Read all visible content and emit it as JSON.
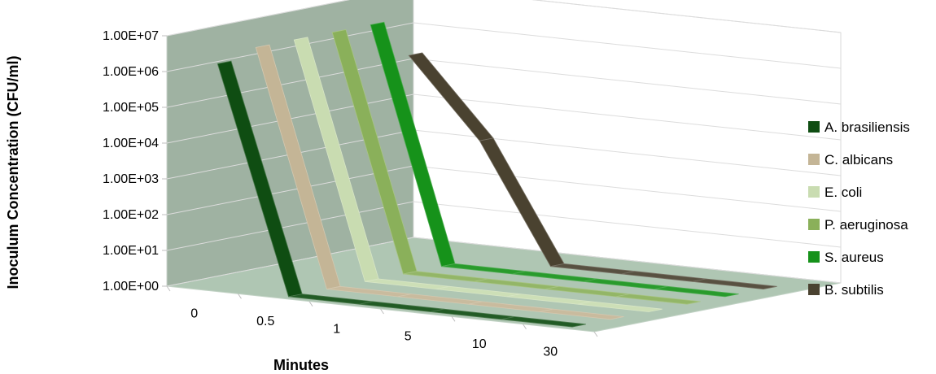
{
  "chart_data": {
    "type": "line",
    "subtype": "3d-ribbon",
    "title": "",
    "xlabel": "Minutes",
    "ylabel": "Inoculum Concentration (CFU/ml)",
    "yscale": "log",
    "ylim": [
      1,
      10000000
    ],
    "y_ticks": [
      "1.00E+00",
      "1.00E+01",
      "1.00E+02",
      "1.00E+03",
      "1.00E+04",
      "1.00E+05",
      "1.00E+06",
      "1.00E+07"
    ],
    "categories": [
      "0",
      "0.5",
      "1",
      "5",
      "10",
      "30"
    ],
    "grid": true,
    "legend_position": "right",
    "series": [
      {
        "name": "A. brasiliensis",
        "color": "#0f4d12",
        "values": [
          2000000,
          1,
          1,
          1,
          1,
          1
        ]
      },
      {
        "name": "C. albicans",
        "color": "#c4b596",
        "values": [
          3500000,
          1,
          1,
          1,
          1,
          1
        ]
      },
      {
        "name": "E. coli",
        "color": "#c9dcb1",
        "values": [
          3500000,
          1,
          1,
          1,
          1,
          1
        ]
      },
      {
        "name": "P. aeruginosa",
        "color": "#8ab05a",
        "values": [
          3500000,
          1,
          1,
          1,
          1,
          1
        ]
      },
      {
        "name": "S. aureus",
        "color": "#16921a",
        "values": [
          3500000,
          1,
          1,
          1,
          1,
          1
        ]
      },
      {
        "name": "B. subtilis",
        "color": "#4a4230",
        "values": [
          300000,
          2000,
          1,
          1,
          1,
          1
        ]
      }
    ]
  }
}
